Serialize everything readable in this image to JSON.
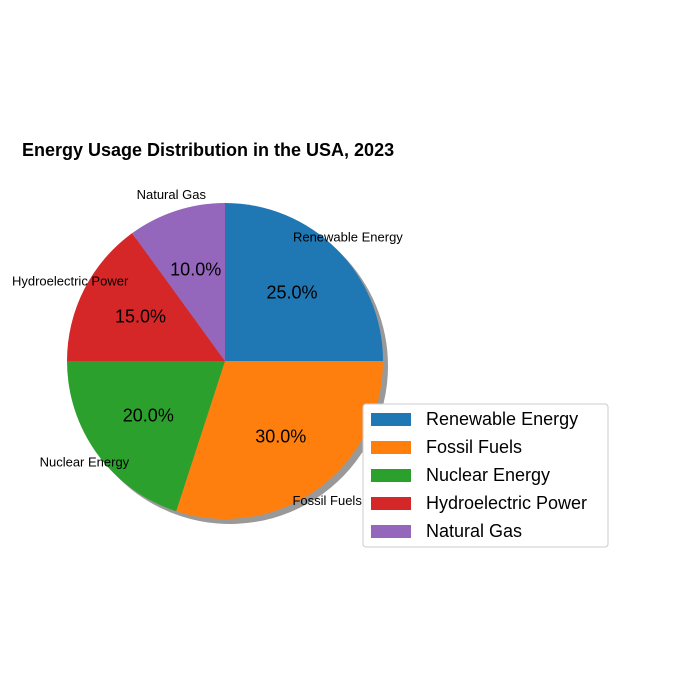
{
  "chart_data": {
    "type": "pie",
    "title": "Energy Usage Distribution in the USA, 2023",
    "categories": [
      "Renewable Energy",
      "Fossil Fuels",
      "Nuclear Energy",
      "Hydroelectric Power",
      "Natural Gas"
    ],
    "values": [
      25,
      30,
      20,
      15,
      10
    ],
    "percent_labels": [
      "25.0%",
      "30.0%",
      "20.0%",
      "15.0%",
      "10.0%"
    ],
    "colors": [
      "#1f77b4",
      "#ff7f0e",
      "#2ca02c",
      "#d62728",
      "#9467bd"
    ],
    "start_angle_deg": 90,
    "direction": "clockwise",
    "shadow": true,
    "legend": {
      "placement": "lower-right",
      "entries": [
        "Renewable Energy",
        "Fossil Fuels",
        "Nuclear Energy",
        "Hydroelectric Power",
        "Natural Gas"
      ]
    }
  }
}
